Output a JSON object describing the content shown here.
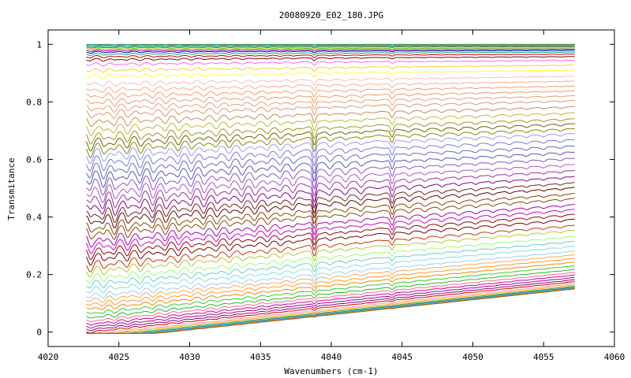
{
  "chart_data": {
    "type": "line",
    "title": "20080920_E02_180.JPG",
    "xlabel": "Wavenumbers (cm-1)",
    "ylabel": "Transmitance",
    "xlim": [
      4020,
      4060
    ],
    "ylim": [
      -0.05,
      1.05
    ],
    "x_ticks": [
      "4020",
      "4025",
      "4030",
      "4035",
      "4040",
      "4045",
      "4050",
      "4055",
      "4060"
    ],
    "y_ticks": [
      "0",
      "0.2",
      "0.4",
      "0.6",
      "0.8",
      "1"
    ],
    "x_range": [
      4022.7,
      4057.2
    ],
    "grid": false,
    "legend": "none",
    "series_levels": [
      1.0,
      0.997,
      0.993,
      0.99,
      0.985,
      0.98,
      0.975,
      0.968,
      0.96,
      0.95,
      0.935,
      0.915,
      0.895,
      0.87,
      0.85,
      0.83,
      0.81,
      0.79,
      0.77,
      0.745,
      0.72,
      0.695,
      0.675,
      0.655,
      0.635,
      0.61,
      0.585,
      0.56,
      0.535,
      0.51,
      0.485,
      0.46,
      0.435,
      0.415,
      0.39,
      0.37,
      0.345,
      0.325,
      0.305,
      0.285,
      0.26,
      0.24,
      0.215,
      0.195,
      0.175,
      0.155,
      0.14,
      0.125,
      0.11,
      0.095,
      0.08,
      0.068,
      0.057,
      0.047,
      0.038,
      0.03,
      0.022,
      0.016,
      0.011,
      0.007,
      0.004,
      0.002,
      0.001,
      0.0
    ],
    "series_colors": [
      "#2ca02c",
      "#1f77b4",
      "#00aaaa",
      "#cc6600",
      "#66cc00",
      "#aa00aa",
      "#0000cc",
      "#00aa88",
      "#cc0000",
      "#880000",
      "#ff66ff",
      "#ffcc33",
      "#ffff33",
      "#ffbbbb",
      "#ffaa88",
      "#ff9966",
      "#ee9966",
      "#e8a070",
      "#dd9966",
      "#cc8855",
      "#bbbb33",
      "#999922",
      "#666600",
      "#888800",
      "#9999ff",
      "#7777dd",
      "#6666cc",
      "#5555bb",
      "#8855cc",
      "#aa55cc",
      "#993399",
      "#880088",
      "#772222",
      "#660000",
      "#884400",
      "#8b4513",
      "#aa00aa",
      "#cc00cc",
      "#990000",
      "#770000",
      "#cc3300",
      "#aacc33",
      "#99ff66",
      "#66cccc",
      "#88dddd",
      "#99ccff",
      "#ffaa44",
      "#ff9933",
      "#ee8800",
      "#33cc33",
      "#22bb22",
      "#ff6699",
      "#cc0099",
      "#aa0088",
      "#880088",
      "#cc0000",
      "#ff9999",
      "#ffaa00",
      "#33aa33",
      "#3366cc",
      "#00cccc",
      "#ff7f0e",
      "#cc6600",
      "#996633"
    ]
  }
}
